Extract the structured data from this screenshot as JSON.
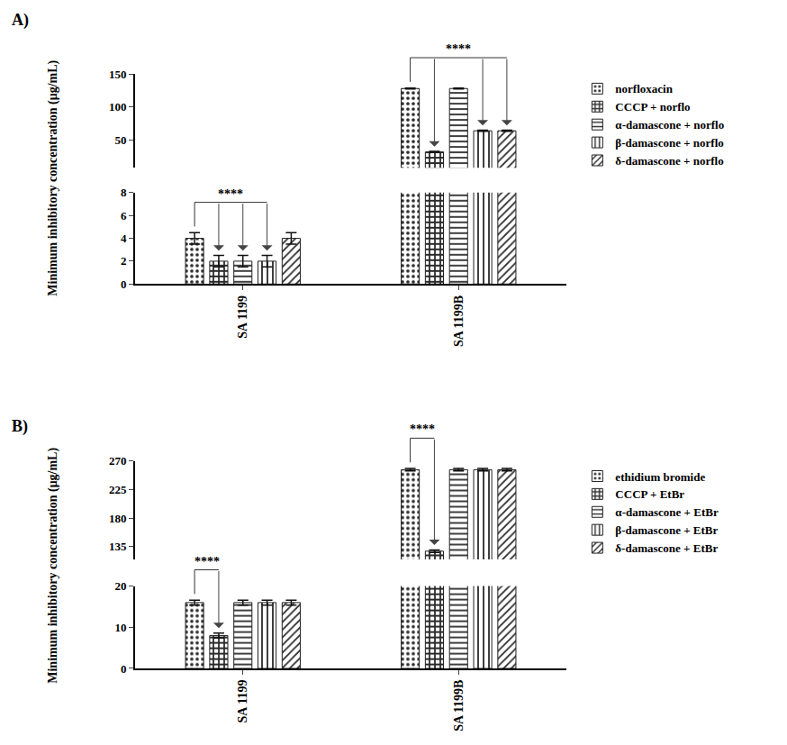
{
  "chart_data": [
    {
      "type": "bar",
      "title": "A)",
      "y_label": "Minimum inhibitory concentration (μg/mL)",
      "categories": [
        "SA 1199",
        "SA 1199B"
      ],
      "series": [
        {
          "name": "norfloxacin",
          "color": "#8fd9a8",
          "marker": "dots",
          "values": [
            4,
            128
          ],
          "errors": [
            0.5,
            0.8
          ]
        },
        {
          "name": "CCCP + norflo",
          "color": "#d4899c",
          "marker": "checker",
          "values": [
            2,
            32
          ],
          "errors": [
            0.5,
            0.8
          ]
        },
        {
          "name": "α-damascone + norflo",
          "color": "#d4899c",
          "marker": "horizontal",
          "values": [
            2,
            128
          ],
          "errors": [
            0.5,
            0.8
          ]
        },
        {
          "name": "β-damascone + norflo",
          "color": "#d4899c",
          "marker": "vertical",
          "values": [
            2,
            64
          ],
          "errors": [
            0.5,
            0.8
          ]
        },
        {
          "name": "δ-damascone + norflo",
          "color": "#d4899c",
          "marker": "diagonal",
          "values": [
            4,
            64
          ],
          "errors": [
            0.5,
            0.8
          ]
        }
      ],
      "ylim": [
        0,
        150
      ],
      "yticks": [
        0,
        2,
        4,
        6,
        8,
        50,
        100,
        150
      ],
      "y_break": [
        8,
        8
      ],
      "grid": false,
      "legend": "right",
      "annotations": [
        {
          "text": "****",
          "category": "SA 1199",
          "from": "norfloxacin",
          "to": [
            "CCCP + norflo",
            "α-damascone + norflo",
            "β-damascone + norflo"
          ]
        },
        {
          "text": "****",
          "category": "SA 1199B",
          "from": "norfloxacin",
          "to": [
            "CCCP + norflo",
            "β-damascone + norflo",
            "δ-damascone + norflo"
          ]
        }
      ]
    },
    {
      "type": "bar",
      "title": "B)",
      "y_label": "Minimum inhibitory concentration (μg/mL)",
      "categories": [
        "SA 1199",
        "SA 1199B"
      ],
      "series": [
        {
          "name": "ethidium bromide",
          "color": "#5a6ee0",
          "marker": "dots",
          "values": [
            16,
            256
          ],
          "errors": [
            0.6,
            2
          ]
        },
        {
          "name": "CCCP + EtBr",
          "color": "#d4899c",
          "marker": "checker",
          "values": [
            8,
            128
          ],
          "errors": [
            0.6,
            2
          ]
        },
        {
          "name": "α-damascone + EtBr",
          "color": "#d4899c",
          "marker": "horizontal",
          "values": [
            16,
            256
          ],
          "errors": [
            0.6,
            2
          ]
        },
        {
          "name": "β-damascone + EtBr",
          "color": "#d4899c",
          "marker": "vertical",
          "values": [
            16,
            256
          ],
          "errors": [
            0.6,
            2
          ]
        },
        {
          "name": "δ-damascone + EtBr",
          "color": "#d4899c",
          "marker": "diagonal",
          "values": [
            16,
            256
          ],
          "errors": [
            0.6,
            2
          ]
        }
      ],
      "ylim": [
        0,
        270
      ],
      "yticks": [
        0,
        10,
        20,
        135,
        180,
        225,
        270
      ],
      "y_break": [
        20,
        115
      ],
      "grid": false,
      "legend": "right",
      "annotations": [
        {
          "text": "****",
          "category": "SA 1199",
          "from": "ethidium bromide",
          "to": [
            "CCCP + EtBr"
          ]
        },
        {
          "text": "****",
          "category": "SA 1199B",
          "from": "ethidium bromide",
          "to": [
            "CCCP + EtBr"
          ]
        }
      ]
    }
  ]
}
